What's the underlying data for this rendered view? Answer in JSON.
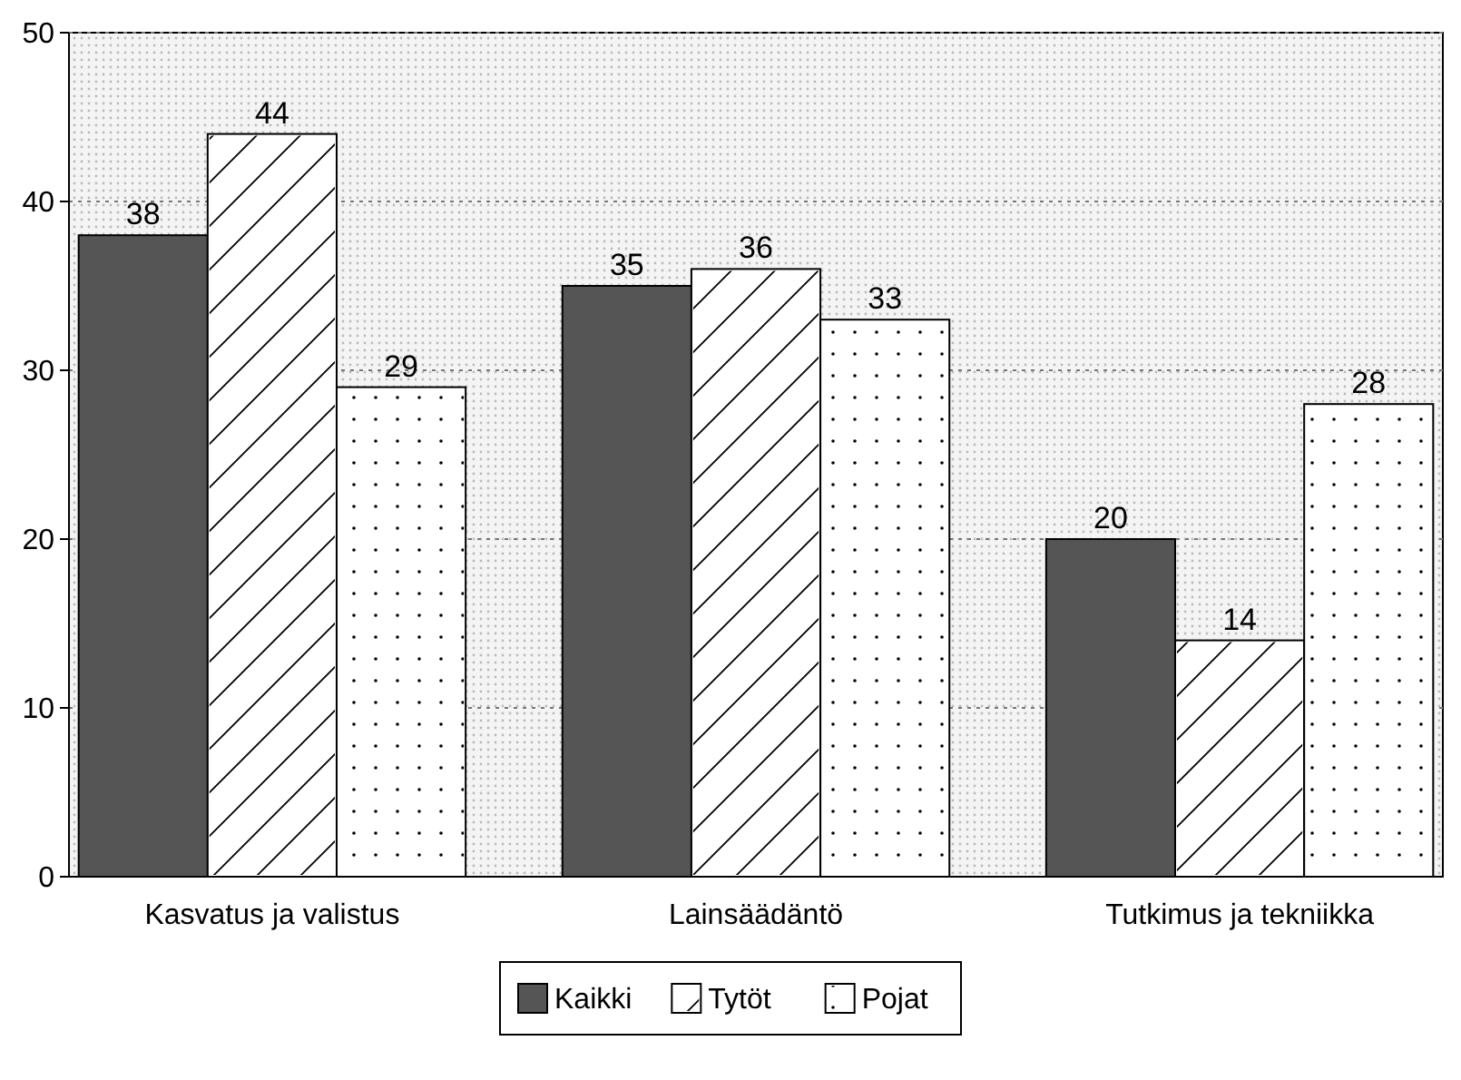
{
  "chart_data": {
    "type": "bar",
    "categories": [
      "Kasvatus ja valistus",
      "Lainsäädäntö",
      "Tutkimus ja tekniikka"
    ],
    "series": [
      {
        "name": "Kaikki",
        "color": "#555555",
        "values": [
          38,
          35,
          20
        ]
      },
      {
        "name": "Tytöt",
        "color": "#ffffff",
        "values": [
          44,
          36,
          14
        ]
      },
      {
        "name": "Pojat",
        "color": "#ffffff",
        "values": [
          29,
          33,
          28
        ]
      }
    ],
    "ylim": [
      0,
      50
    ],
    "yticks": [
      0,
      10,
      20,
      30,
      40,
      50
    ],
    "grid": "y",
    "data_labels": true,
    "legend": "bottom"
  }
}
